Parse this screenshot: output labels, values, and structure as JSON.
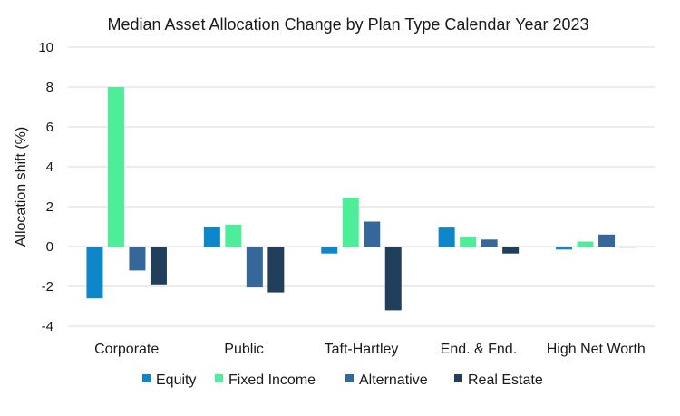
{
  "chart_data": {
    "type": "bar",
    "title": "Median Asset Allocation Change by Plan Type Calendar Year 2023",
    "xlabel": "",
    "ylabel": "Allocation shift (%)",
    "ylim": [
      -4,
      10
    ],
    "yticks": [
      -4,
      -2,
      0,
      2,
      4,
      6,
      8,
      10
    ],
    "grid": true,
    "legend_position": "bottom",
    "categories": [
      "Corporate",
      "Public",
      "Taft-Hartley",
      "End. & Fnd.",
      "High Net Worth"
    ],
    "series": [
      {
        "name": "Equity",
        "color": "#0d87c9",
        "values": [
          -2.6,
          1.0,
          -0.35,
          0.95,
          -0.15
        ]
      },
      {
        "name": "Fixed Income",
        "color": "#4ded9a",
        "values": [
          8.0,
          1.1,
          2.45,
          0.5,
          0.25
        ]
      },
      {
        "name": "Alternative",
        "color": "#35679a",
        "values": [
          -1.2,
          -2.05,
          1.25,
          0.35,
          0.6
        ]
      },
      {
        "name": "Real Estate",
        "color": "#213f5a",
        "values": [
          -1.9,
          -2.3,
          -3.2,
          -0.35,
          -0.05
        ]
      }
    ]
  }
}
